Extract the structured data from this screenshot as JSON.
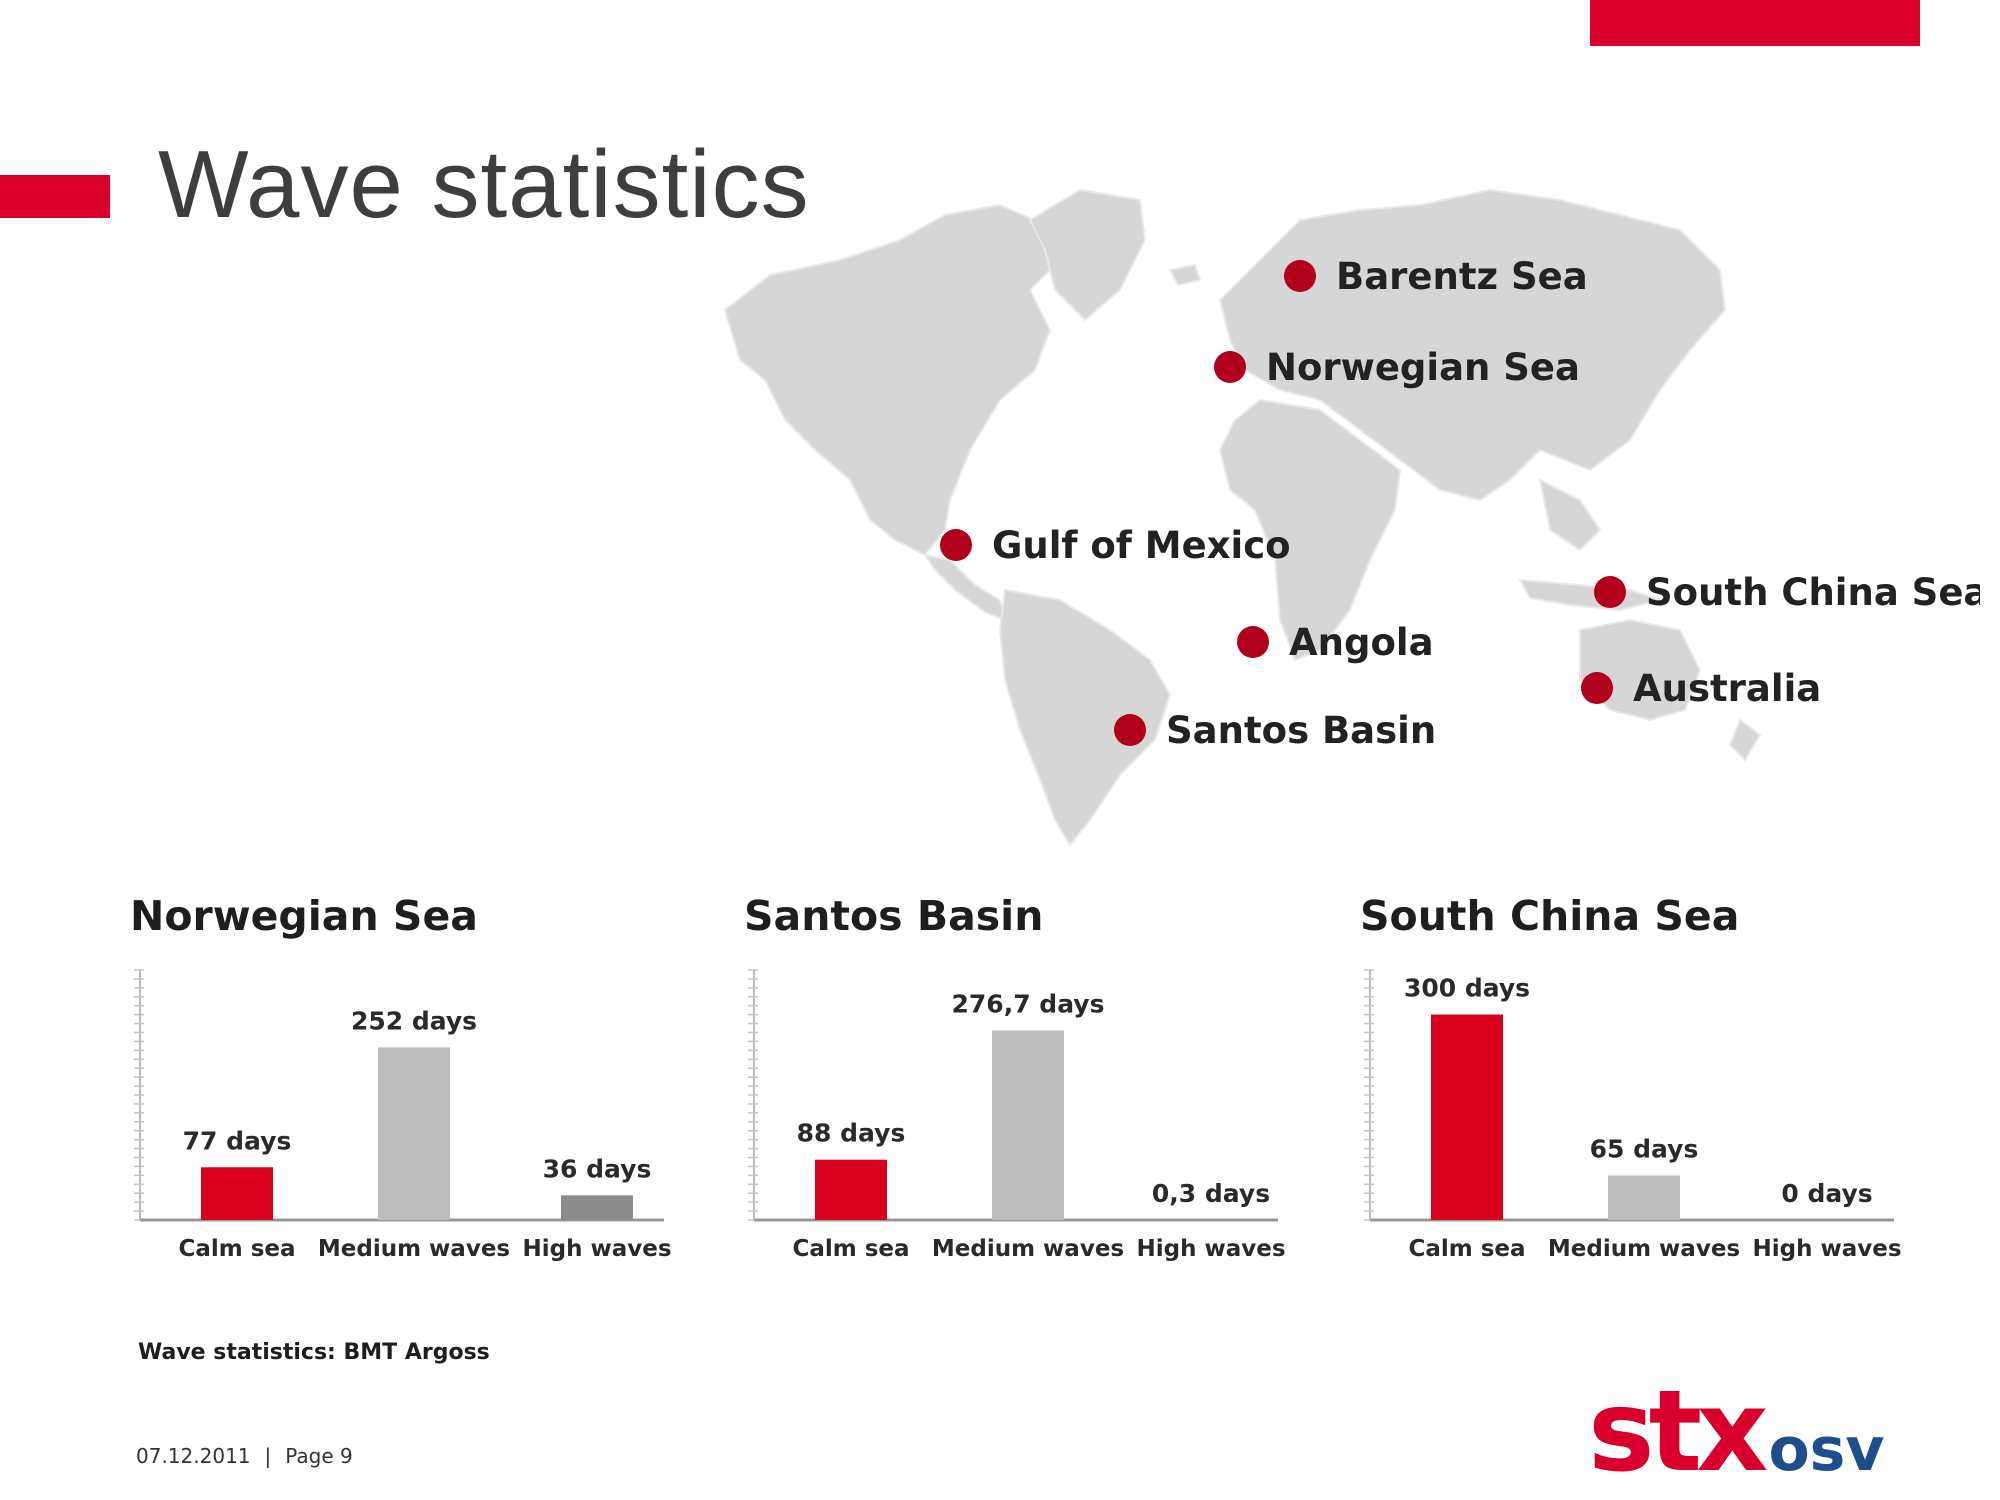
{
  "slide": {
    "title": "Wave statistics",
    "source": "Wave statistics: BMT Argoss",
    "footer_date": "07.12.2011",
    "footer_separator": "|",
    "footer_page": "Page 9",
    "accent_color": "#d8002a"
  },
  "map": {
    "land_color": "#d6d6d6",
    "marker_color": "#b0001c",
    "locations": [
      {
        "name": "Barentz Sea"
      },
      {
        "name": "Norwegian Sea"
      },
      {
        "name": "Gulf of Mexico"
      },
      {
        "name": "South China Sea"
      },
      {
        "name": "Angola"
      },
      {
        "name": "Australia"
      },
      {
        "name": "Santos Basin"
      }
    ]
  },
  "logo": {
    "brand": "stx",
    "sub": "osv",
    "brand_color": "#d8002a",
    "sub_color": "#1f4e8c"
  },
  "chart_data": [
    {
      "type": "bar",
      "title": "Norwegian Sea",
      "categories": [
        "Calm sea",
        "Medium waves",
        "High waves"
      ],
      "values": [
        77,
        252,
        36
      ],
      "value_labels": [
        "77 days",
        "252 days",
        "36 days"
      ],
      "colors": [
        "#d8001c",
        "#bdbdbd",
        "#8c8c8c"
      ],
      "ylim": [
        0,
        365
      ],
      "grid": false
    },
    {
      "type": "bar",
      "title": "Santos Basin",
      "categories": [
        "Calm sea",
        "Medium waves",
        "High waves"
      ],
      "values": [
        88,
        276.7,
        0.3
      ],
      "value_labels": [
        "88 days",
        "276,7 days",
        "0,3 days"
      ],
      "colors": [
        "#d8001c",
        "#bdbdbd",
        "#8c8c8c"
      ],
      "ylim": [
        0,
        365
      ],
      "grid": false
    },
    {
      "type": "bar",
      "title": "South China Sea",
      "categories": [
        "Calm sea",
        "Medium waves",
        "High waves"
      ],
      "values": [
        300,
        65,
        0
      ],
      "value_labels": [
        "300 days",
        "65 days",
        "0 days"
      ],
      "colors": [
        "#d8001c",
        "#bdbdbd",
        "#8c8c8c"
      ],
      "ylim": [
        0,
        365
      ],
      "grid": false
    }
  ]
}
